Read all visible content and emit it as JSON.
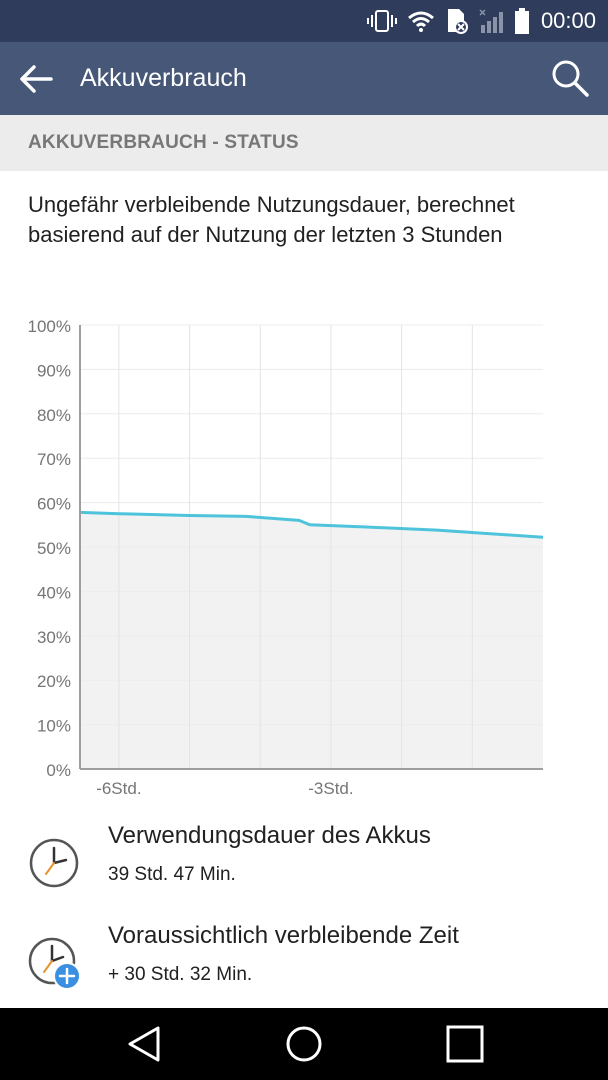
{
  "status_bar": {
    "time": "00:00",
    "icons": [
      "vibrate-icon",
      "wifi-icon",
      "sim-error-icon",
      "signal-icon",
      "battery-icon"
    ]
  },
  "app_bar": {
    "title": "Akkuverbrauch",
    "back_icon": "arrow-back-icon",
    "search_icon": "search-icon"
  },
  "section": {
    "header": "AKKUVERBRAUCH - STATUS",
    "description": "Ungefähr verbleibende Nutzungsdauer, berechnet basierend auf der Nutzung der letzten 3 Stunden"
  },
  "chart_data": {
    "type": "area",
    "y_tick_labels": [
      "100%",
      "90%",
      "80%",
      "70%",
      "60%",
      "50%",
      "40%",
      "30%",
      "20%",
      "10%",
      "0%"
    ],
    "x_tick_labels": [
      {
        "label": "-6Std.",
        "x": -6
      },
      {
        "label": "-3Std.",
        "x": -3
      }
    ],
    "xlim": [
      -6.55,
      0
    ],
    "ylim": [
      0,
      100
    ],
    "grid": true,
    "line_color": "#4ec3dc",
    "fill_color": "#f2f2f2",
    "x": [
      -6.55,
      -6.0,
      -5.0,
      -4.2,
      -3.45,
      -3.3,
      -2.5,
      -1.5,
      0
    ],
    "values": [
      57.8,
      57.5,
      57.1,
      56.9,
      56.0,
      55.0,
      54.5,
      53.8,
      52.2
    ]
  },
  "usage": {
    "title": "Verwendungsdauer des Akkus",
    "value": "39 Std. 47 Min.",
    "icon": "clock-icon"
  },
  "remaining": {
    "title": "Voraussichtlich verbleibende Zeit",
    "value": "+ 30 Std. 32 Min.",
    "icon": "clock-plus-icon",
    "badge_color": "#3a8fe0"
  },
  "nav_bar": {
    "icons": [
      "nav-back-icon",
      "nav-home-icon",
      "nav-recents-icon"
    ]
  }
}
